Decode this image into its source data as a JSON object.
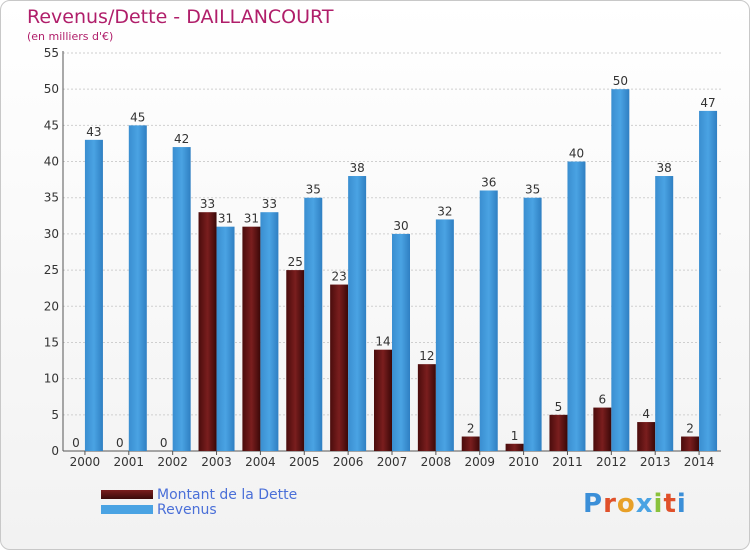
{
  "title": "Revenus/Dette - DAILLANCOURT",
  "subtitle": "(en milliers d'€)",
  "colors": {
    "debt": "#7a1e1e",
    "revenue": "#4aa3e3",
    "title": "#b01e6a",
    "legend_text": "#4a6fd8"
  },
  "legend": {
    "debt_label": "Montant de la Dette",
    "revenue_label": "Revenus"
  },
  "logo": {
    "letters": [
      "P",
      "r",
      "o",
      "x",
      "i",
      "t",
      "i"
    ],
    "colors": [
      "#3b8fd8",
      "#e0502a",
      "#e8a028",
      "#4aa3e3",
      "#8ac23c",
      "#e0502a",
      "#3b8fd8"
    ]
  },
  "chart_data": {
    "type": "bar",
    "categories": [
      "2000",
      "2001",
      "2002",
      "2003",
      "2004",
      "2005",
      "2006",
      "2007",
      "2008",
      "2009",
      "2010",
      "2011",
      "2012",
      "2013",
      "2014"
    ],
    "series": [
      {
        "name": "Montant de la Dette",
        "values": [
          0,
          0,
          0,
          33,
          31,
          25,
          23,
          14,
          12,
          2,
          1,
          5,
          6,
          4,
          2
        ]
      },
      {
        "name": "Revenus",
        "values": [
          43,
          45,
          42,
          31,
          33,
          35,
          38,
          30,
          32,
          36,
          35,
          40,
          50,
          38,
          47
        ]
      }
    ],
    "ylim": [
      0,
      55
    ],
    "yticks": [
      0,
      5,
      10,
      15,
      20,
      25,
      30,
      35,
      40,
      45,
      50,
      55
    ],
    "grid": true,
    "legend_position": "bottom-left"
  }
}
